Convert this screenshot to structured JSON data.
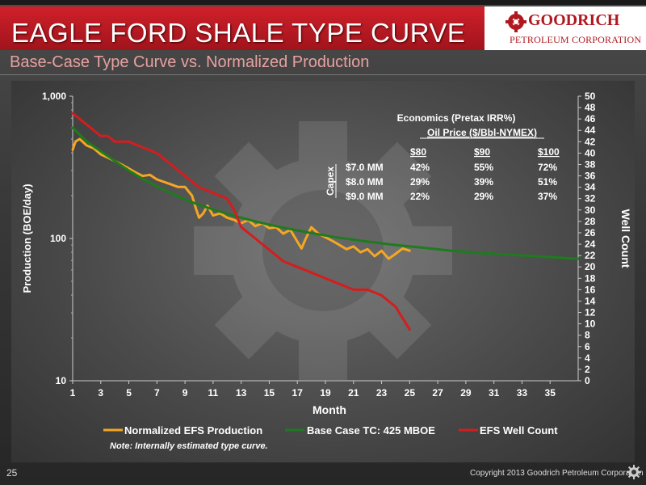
{
  "header": {
    "title": "EAGLE FORD SHALE TYPE CURVE",
    "subtitle": "Base-Case Type Curve vs. Normalized Production",
    "logo_line1": "GOODRICH",
    "logo_line2": "PETROLEUM CORPORATION"
  },
  "footer": {
    "page_number": "25",
    "copyright": "Copyright 2013 Goodrich Petroleum Corporation"
  },
  "colors": {
    "normalized": "#f5a623",
    "base_case": "#1e7b1e",
    "well_count": "#d21e1e",
    "title_red": "#c0181f"
  },
  "economics": {
    "title": "Economics (Pretax IRR%)",
    "subtitle": "Oil Price ($/Bbl-NYMEX)",
    "row_header": "Capex",
    "columns": [
      "$80",
      "$90",
      "$100"
    ],
    "rows": [
      {
        "capex": "$7.0 MM",
        "values": [
          "42%",
          "55%",
          "72%"
        ]
      },
      {
        "capex": "$8.0 MM",
        "values": [
          "29%",
          "39%",
          "51%"
        ]
      },
      {
        "capex": "$9.0 MM",
        "values": [
          "22%",
          "29%",
          "37%"
        ]
      }
    ]
  },
  "note": "Note: Internally estimated type curve.",
  "chart_data": {
    "type": "line",
    "xlabel": "Month",
    "ylabel": "Production (BOE/day)",
    "y2label": "Well Count",
    "xlim": [
      1,
      37
    ],
    "ylim": [
      10,
      1000
    ],
    "yscale": "log",
    "y2lim": [
      0,
      50
    ],
    "x_ticks": [
      1,
      3,
      5,
      7,
      9,
      11,
      13,
      15,
      17,
      19,
      21,
      23,
      25,
      27,
      29,
      31,
      33,
      35
    ],
    "y_ticks": [
      10,
      100,
      1000
    ],
    "y_tick_labels": [
      "10",
      "100",
      "1,000"
    ],
    "y2_ticks": [
      0,
      2,
      4,
      6,
      8,
      10,
      12,
      14,
      16,
      18,
      20,
      22,
      24,
      26,
      28,
      30,
      32,
      34,
      36,
      38,
      40,
      42,
      44,
      46,
      48,
      50
    ],
    "legend_position": "bottom",
    "series": [
      {
        "name": "Normalized EFS Production",
        "axis": "left",
        "x": [
          1,
          1.2,
          1.5,
          2,
          2.5,
          3,
          3.5,
          4,
          4.5,
          5,
          5.5,
          6,
          6.5,
          7,
          7.5,
          8,
          8.5,
          9,
          9.5,
          9.8,
          10,
          10.3,
          10.6,
          11,
          11.5,
          12,
          12.5,
          13,
          13.5,
          14,
          14.5,
          15,
          15.5,
          16,
          16.5,
          17,
          17.3,
          17.6,
          18,
          18.5,
          19,
          19.5,
          20,
          20.5,
          21,
          21.5,
          22,
          22.5,
          23,
          23.5,
          24,
          24.5,
          25
        ],
        "y": [
          420,
          480,
          500,
          450,
          430,
          390,
          370,
          350,
          330,
          310,
          290,
          275,
          280,
          260,
          250,
          240,
          230,
          230,
          200,
          160,
          140,
          150,
          170,
          145,
          150,
          140,
          135,
          128,
          135,
          122,
          128,
          118,
          120,
          108,
          115,
          95,
          85,
          100,
          120,
          108,
          102,
          96,
          90,
          84,
          88,
          80,
          84,
          75,
          82,
          72,
          78,
          85,
          82
        ]
      },
      {
        "name": "Base Case TC: 425 MBOE",
        "axis": "left",
        "x": [
          1,
          2,
          3,
          4,
          5,
          6,
          7,
          8,
          9,
          10,
          11,
          12,
          13,
          14,
          15,
          16,
          17,
          18,
          19,
          20,
          22,
          24,
          26,
          28,
          30,
          32,
          34,
          36,
          37
        ],
        "y": [
          600,
          480,
          410,
          350,
          300,
          262,
          232,
          208,
          188,
          172,
          160,
          149,
          140,
          132,
          125,
          119,
          114,
          109,
          105,
          101,
          95,
          90,
          86,
          82,
          79,
          77,
          75,
          73,
          72
        ]
      },
      {
        "name": "EFS Well Count",
        "axis": "right",
        "x": [
          1,
          1.5,
          2,
          2.5,
          3,
          3.5,
          4,
          4.5,
          5,
          6,
          7,
          7.5,
          8,
          9,
          9.5,
          10,
          11,
          12,
          12.5,
          13,
          14,
          15,
          16,
          17,
          18,
          19,
          20,
          21,
          22,
          23,
          24,
          24.5,
          25
        ],
        "y": [
          47,
          46,
          45,
          44,
          43,
          43,
          42,
          42,
          42,
          41,
          40,
          39,
          38,
          36,
          35,
          34,
          33,
          32,
          30,
          27,
          25,
          23,
          21,
          20,
          19,
          18,
          17,
          16,
          16,
          15,
          13,
          11,
          9
        ]
      }
    ]
  }
}
